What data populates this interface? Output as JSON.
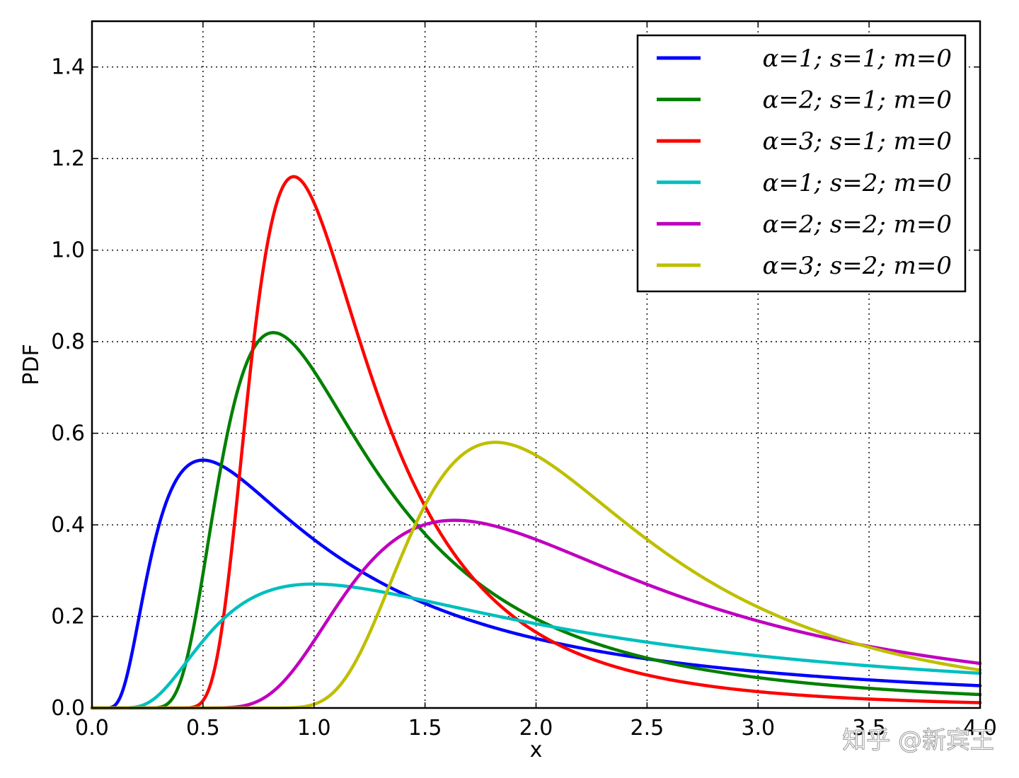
{
  "chart_data": {
    "type": "line",
    "title": "",
    "xlabel": "x",
    "ylabel": "PDF",
    "xlim": [
      0.0,
      4.0
    ],
    "ylim": [
      0.0,
      1.5
    ],
    "xticks": [
      "0.0",
      "0.5",
      "1.0",
      "1.5",
      "2.0",
      "2.5",
      "3.0",
      "3.5",
      "4.0"
    ],
    "yticks": [
      "0.0",
      "0.2",
      "0.4",
      "0.6",
      "0.8",
      "1.0",
      "1.2",
      "1.4"
    ],
    "grid": true,
    "legend_position": "top-right",
    "series": [
      {
        "name": "α=1; s=1; m=0",
        "alpha": 1,
        "s": 1,
        "m": 0,
        "color": "#0000ff"
      },
      {
        "name": "α=2; s=1; m=0",
        "alpha": 2,
        "s": 1,
        "m": 0,
        "color": "#008000"
      },
      {
        "name": "α=3; s=1; m=0",
        "alpha": 3,
        "s": 1,
        "m": 0,
        "color": "#ff0000"
      },
      {
        "name": "α=1; s=2; m=0",
        "alpha": 1,
        "s": 2,
        "m": 0,
        "color": "#00bfbf"
      },
      {
        "name": "α=2; s=2; m=0",
        "alpha": 2,
        "s": 2,
        "m": 0,
        "color": "#bf00bf"
      },
      {
        "name": "α=3; s=2; m=0",
        "alpha": 3,
        "s": 2,
        "m": 0,
        "color": "#bfbf00"
      }
    ]
  },
  "watermark": "知乎 @新宾王"
}
